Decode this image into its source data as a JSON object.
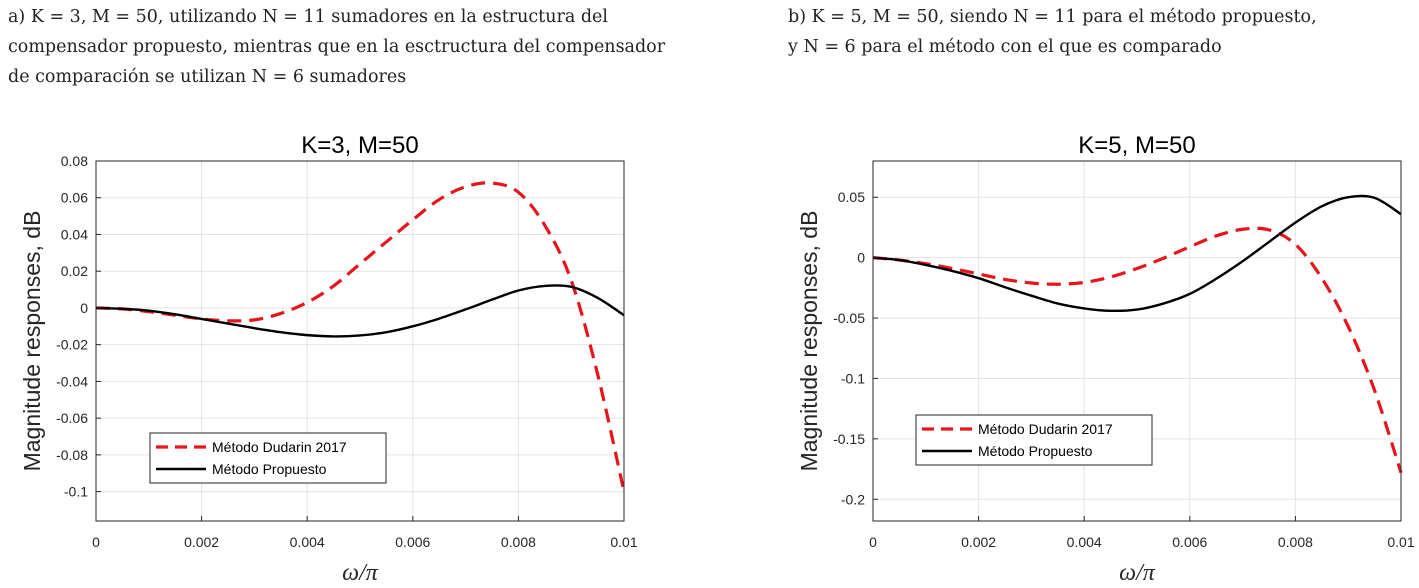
{
  "captions": {
    "a": {
      "lines": [
        "a) K = 3, M = 50, utilizando N = 11 sumadores en la estructura del",
        "compensador propuesto, mientras que en la esctructura del compensador",
        "de comparación se utilizan N = 6 sumadores"
      ]
    },
    "b": {
      "lines": [
        "b) K = 5, M = 50, siendo N = 11 para el método propuesto,",
        "y N = 6 para el método con el que es comparado"
      ]
    }
  },
  "colors": {
    "dudarin": "#e8141c",
    "propuesto": "#000000",
    "grid": "#e3e3e3",
    "axis": "#262626"
  },
  "chart_data": [
    {
      "type": "line",
      "title": "K=3, M=50",
      "xlabel": "ω/π",
      "ylabel": "Magnitude responses, dB",
      "xlim": [
        0,
        0.01
      ],
      "ylim": [
        -0.116,
        0.08
      ],
      "xticks": [
        0,
        0.002,
        0.004,
        0.006,
        0.008,
        0.01
      ],
      "xtick_labels": [
        "0",
        "0.002",
        "0.004",
        "0.006",
        "0.008",
        "0.01"
      ],
      "yticks": [
        0.08,
        0.06,
        0.04,
        0.02,
        0,
        -0.02,
        -0.04,
        -0.06,
        -0.08,
        -0.1
      ],
      "ytick_labels": [
        "0.08",
        "0.06",
        "0.04",
        "0.02",
        "0",
        "-0.02",
        "-0.04",
        "-0.06",
        "-0.08",
        "-0.1"
      ],
      "grid": true,
      "legend": {
        "position": "bottom-left",
        "entries": [
          "Método Dudarin 2017",
          "Método Propuesto"
        ]
      },
      "series": [
        {
          "name": "Método Dudarin 2017",
          "style": "dashed",
          "x": [
            0,
            0.0005,
            0.001,
            0.0015,
            0.002,
            0.0025,
            0.003,
            0.0035,
            0.004,
            0.0045,
            0.005,
            0.0055,
            0.006,
            0.0065,
            0.007,
            0.0075,
            0.008,
            0.0085,
            0.009,
            0.0095,
            0.01
          ],
          "y": [
            0,
            -0.0005,
            -0.002,
            -0.004,
            -0.006,
            -0.007,
            -0.0065,
            -0.003,
            0.003,
            0.012,
            0.024,
            0.036,
            0.048,
            0.059,
            0.066,
            0.068,
            0.063,
            0.045,
            0.015,
            -0.036,
            -0.1
          ]
        },
        {
          "name": "Método Propuesto",
          "style": "solid",
          "x": [
            0,
            0.0005,
            0.001,
            0.0015,
            0.002,
            0.0025,
            0.003,
            0.0035,
            0.004,
            0.0045,
            0.005,
            0.0055,
            0.006,
            0.0065,
            0.007,
            0.0075,
            0.008,
            0.0085,
            0.009,
            0.0095,
            0.01
          ],
          "y": [
            0,
            -0.0005,
            -0.0015,
            -0.0035,
            -0.006,
            -0.0085,
            -0.011,
            -0.0132,
            -0.0148,
            -0.0155,
            -0.015,
            -0.0132,
            -0.01,
            -0.0058,
            -0.0008,
            0.0045,
            0.0095,
            0.012,
            0.0115,
            0.0055,
            -0.004
          ]
        }
      ]
    },
    {
      "type": "line",
      "title": "K=5, M=50",
      "xlabel": "ω/π",
      "ylabel": "Magnitude responses, dB",
      "xlim": [
        0,
        0.01
      ],
      "ylim": [
        -0.218,
        0.08
      ],
      "xticks": [
        0,
        0.002,
        0.004,
        0.006,
        0.008,
        0.01
      ],
      "xtick_labels": [
        "0",
        "0.002",
        "0.004",
        "0.006",
        "0.008",
        "0.01"
      ],
      "yticks": [
        0.05,
        0,
        -0.05,
        -0.1,
        -0.15,
        -0.2
      ],
      "ytick_labels": [
        "0.05",
        "0",
        "-0.05",
        "-0.1",
        "-0.15",
        "-0.2"
      ],
      "grid": true,
      "legend": {
        "position": "bottom-left",
        "entries": [
          "Método Dudarin 2017",
          "Método Propuesto"
        ]
      },
      "series": [
        {
          "name": "Método Dudarin 2017",
          "style": "dashed",
          "x": [
            0,
            0.0005,
            0.001,
            0.0015,
            0.002,
            0.0025,
            0.003,
            0.0035,
            0.004,
            0.0045,
            0.005,
            0.0055,
            0.006,
            0.0065,
            0.007,
            0.0075,
            0.008,
            0.0085,
            0.009,
            0.0095,
            0.01
          ],
          "y": [
            0,
            -0.002,
            -0.005,
            -0.009,
            -0.0135,
            -0.018,
            -0.021,
            -0.022,
            -0.0205,
            -0.016,
            -0.009,
            -0.0005,
            0.009,
            0.018,
            0.0235,
            0.023,
            0.011,
            -0.017,
            -0.057,
            -0.11,
            -0.178
          ]
        },
        {
          "name": "Método Propuesto",
          "style": "solid",
          "x": [
            0,
            0.0005,
            0.001,
            0.0015,
            0.002,
            0.0025,
            0.003,
            0.0035,
            0.004,
            0.0045,
            0.005,
            0.0055,
            0.006,
            0.0065,
            0.007,
            0.0075,
            0.008,
            0.0085,
            0.009,
            0.0095,
            0.01
          ],
          "y": [
            0,
            -0.002,
            -0.006,
            -0.011,
            -0.017,
            -0.0245,
            -0.0315,
            -0.038,
            -0.042,
            -0.044,
            -0.043,
            -0.038,
            -0.03,
            -0.0175,
            -0.003,
            0.013,
            0.029,
            0.0425,
            0.05,
            0.0495,
            0.036
          ]
        }
      ]
    }
  ]
}
